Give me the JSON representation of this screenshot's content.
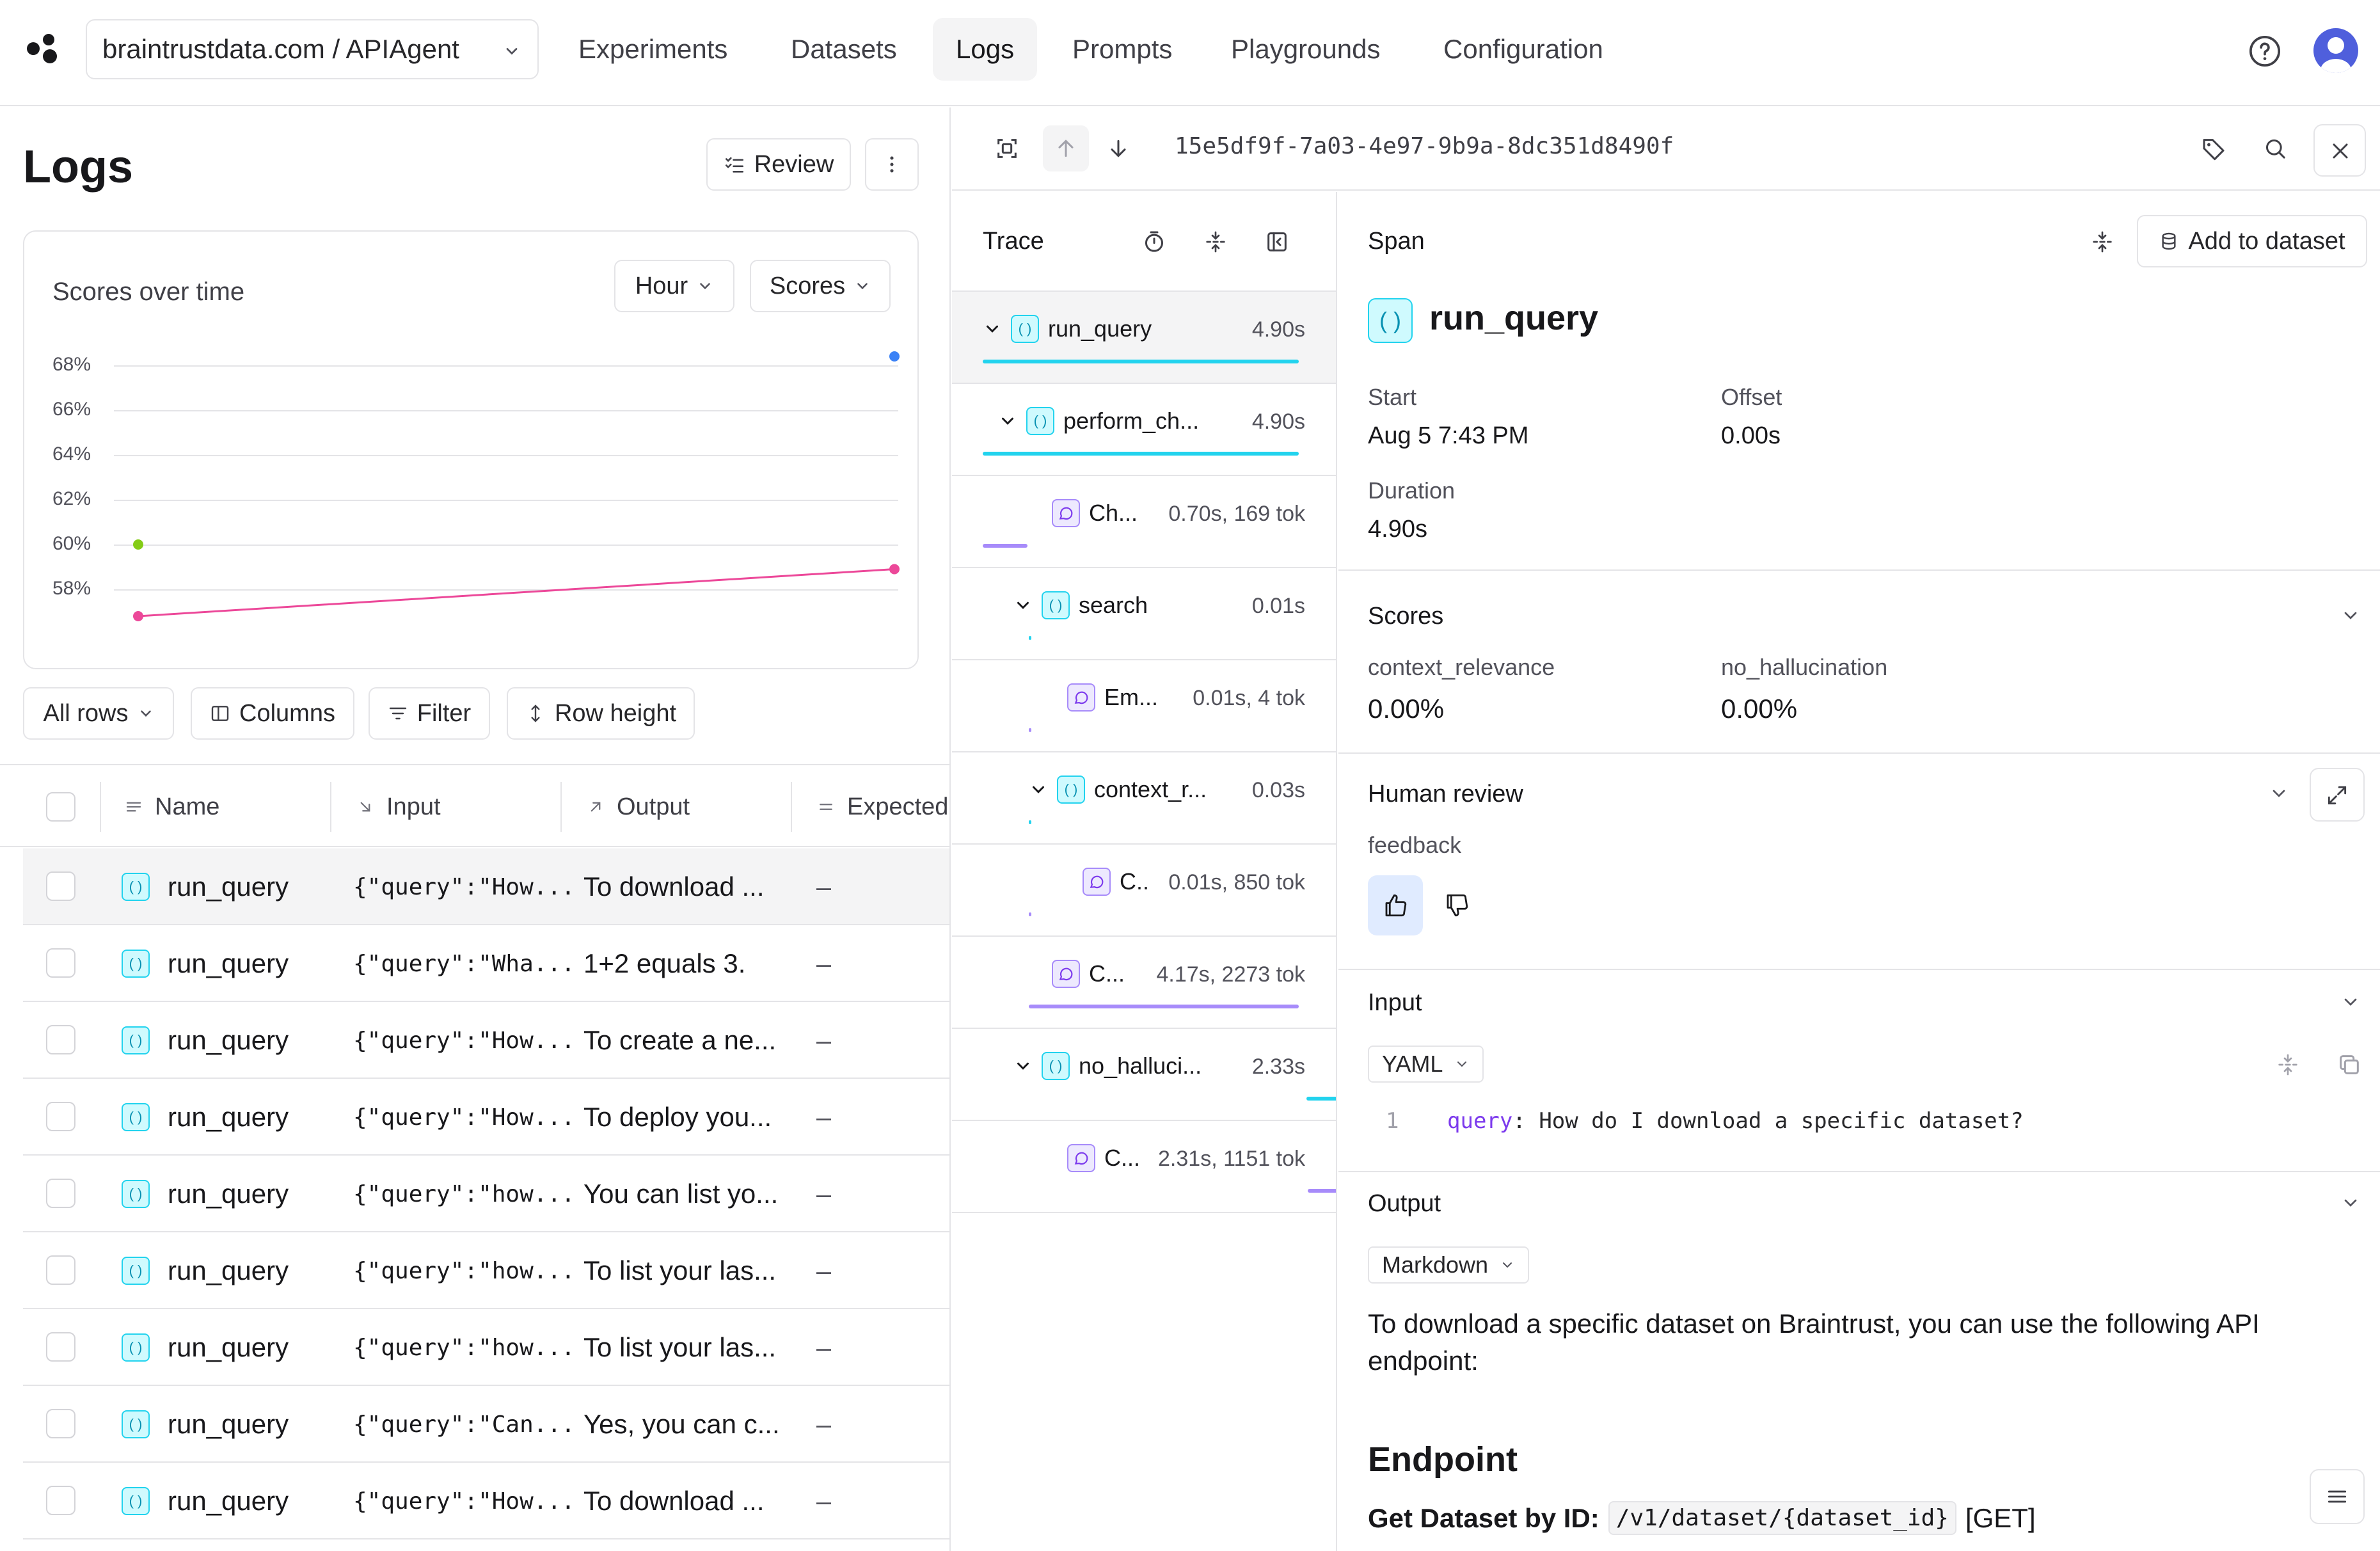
{
  "nav": {
    "project": "braintrustdata.com / APIAgent",
    "tabs": [
      {
        "label": "Experiments"
      },
      {
        "label": "Datasets"
      },
      {
        "label": "Logs"
      },
      {
        "label": "Prompts"
      },
      {
        "label": "Playgrounds"
      },
      {
        "label": "Configuration"
      }
    ],
    "active_tab": "Logs"
  },
  "logs": {
    "title": "Logs",
    "review_label": "Review",
    "chart_title": "Scores over time",
    "hour_label": "Hour",
    "scores_label": "Scores",
    "toolbar": {
      "all_rows": "All rows",
      "columns": "Columns",
      "filter": "Filter",
      "row_height": "Row height"
    },
    "columns": [
      "Name",
      "Input",
      "Output",
      "Expected"
    ],
    "rows": [
      {
        "name": "run_query",
        "input": "{\"query\":\"How...",
        "output": "To download ...",
        "expected": "–"
      },
      {
        "name": "run_query",
        "input": "{\"query\":\"Wha...",
        "output": "1+2 equals 3.",
        "expected": "–"
      },
      {
        "name": "run_query",
        "input": "{\"query\":\"How...",
        "output": "To create a ne...",
        "expected": "–"
      },
      {
        "name": "run_query",
        "input": "{\"query\":\"How...",
        "output": "To deploy you...",
        "expected": "–"
      },
      {
        "name": "run_query",
        "input": "{\"query\":\"how...",
        "output": "You can list yo...",
        "expected": "–"
      },
      {
        "name": "run_query",
        "input": "{\"query\":\"how...",
        "output": "To list your las...",
        "expected": "–"
      },
      {
        "name": "run_query",
        "input": "{\"query\":\"how...",
        "output": "To list your las...",
        "expected": "–"
      },
      {
        "name": "run_query",
        "input": "{\"query\":\"Can...",
        "output": "Yes, you can c...",
        "expected": "–"
      },
      {
        "name": "run_query",
        "input": "{\"query\":\"How...",
        "output": "To download ...",
        "expected": "–"
      }
    ]
  },
  "chart_data": {
    "type": "line",
    "title": "Scores over time",
    "yticks": [
      "68%",
      "66%",
      "64%",
      "62%",
      "60%",
      "58%"
    ],
    "ylim": [
      57,
      69
    ],
    "x": [
      0,
      1
    ],
    "series": [
      {
        "color": "#ec4899",
        "values": [
          56.8,
          58.9
        ]
      },
      {
        "color": "#84cc16",
        "values": [
          60.0,
          null
        ]
      },
      {
        "color": "#3b82f6",
        "values": [
          null,
          68.4
        ]
      }
    ],
    "grid": true
  },
  "detail": {
    "id": "15e5df9f-7a03-4e97-9b9a-8dc351d8490f",
    "trace_label": "Trace",
    "span_label": "Span",
    "add_to_dataset": "Add to dataset",
    "span_name": "run_query",
    "start_label": "Start",
    "start_value": "Aug 5 7:43 PM",
    "offset_label": "Offset",
    "offset_value": "0.00s",
    "duration_label": "Duration",
    "duration_value": "4.90s",
    "scores_label": "Scores",
    "scores": [
      {
        "name": "context_relevance",
        "value": "0.00%"
      },
      {
        "name": "no_hallucination",
        "value": "0.00%"
      }
    ],
    "human_review_label": "Human review",
    "feedback_label": "feedback",
    "input_label": "Input",
    "input_format": "YAML",
    "input_line_no": "1",
    "input_key": "query",
    "input_value": " How do I download a specific dataset?",
    "output_label": "Output",
    "output_format": "Markdown",
    "output_text": "To download a specific dataset on Braintrust, you can use the following API endpoint:",
    "endpoint_heading": "Endpoint",
    "get_dataset_label": "Get Dataset by ID:",
    "get_dataset_path": "/v1/dataset/{dataset_id}",
    "get_dataset_method": "[GET]"
  },
  "trace": [
    {
      "name": "run_query",
      "dur": "4.90s",
      "type": "fn"
    },
    {
      "name": "perform_ch...",
      "dur": "4.90s",
      "type": "fn"
    },
    {
      "name": "Ch...",
      "dur": "0.70s, 169 tok",
      "type": "llm"
    },
    {
      "name": "search",
      "dur": "0.01s",
      "type": "fn"
    },
    {
      "name": "Em...",
      "dur": "0.01s, 4 tok",
      "type": "llm"
    },
    {
      "name": "context_r...",
      "dur": "0.03s",
      "type": "fn"
    },
    {
      "name": "C..",
      "dur": "0.01s, 850 tok",
      "type": "llm"
    },
    {
      "name": "C...",
      "dur": "4.17s, 2273 tok",
      "type": "llm"
    },
    {
      "name": "no_halluci...",
      "dur": "2.33s",
      "type": "fn"
    },
    {
      "name": "C...",
      "dur": "2.31s, 1151 tok",
      "type": "llm"
    }
  ]
}
